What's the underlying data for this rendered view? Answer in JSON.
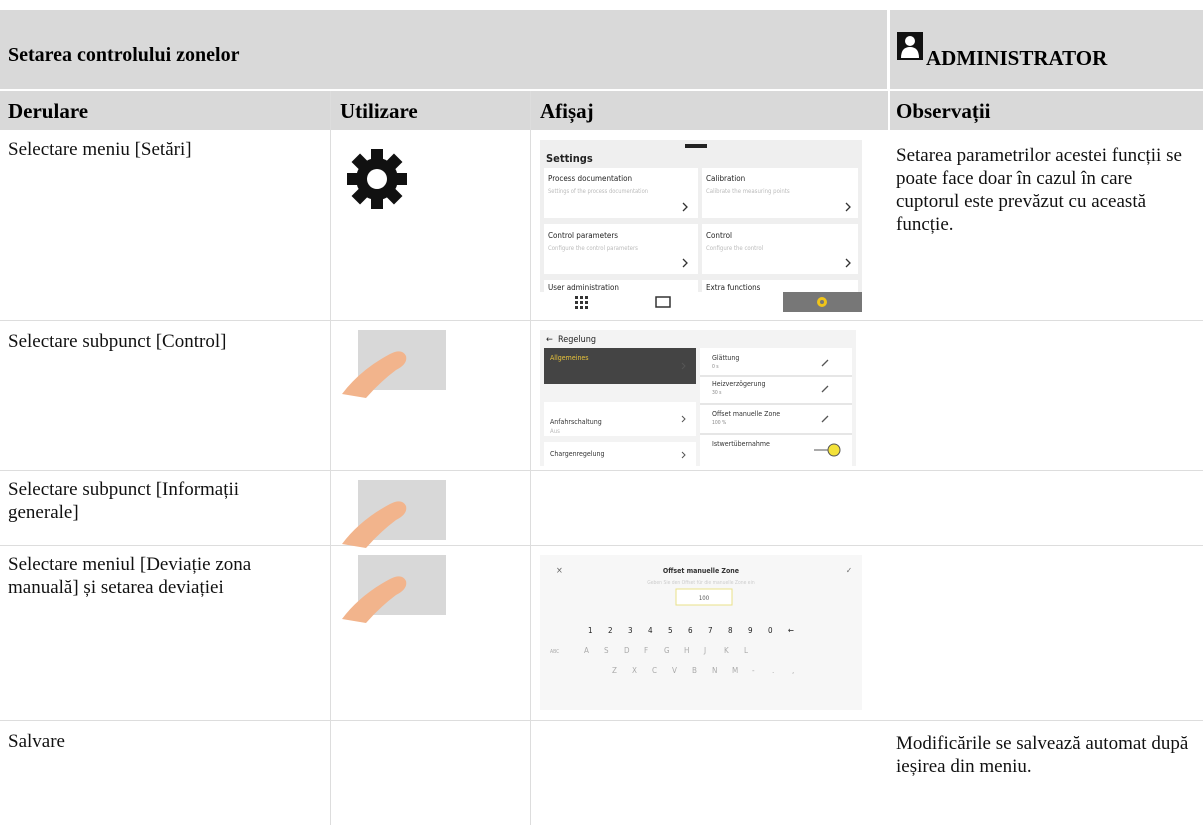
{
  "header": {
    "title": "Setarea controlului zonelor",
    "role": "ADMINISTRATOR"
  },
  "table": {
    "columns": [
      "Derulare",
      "Utilizare",
      "Afișaj",
      "Observații"
    ],
    "rows": [
      {
        "step": "Selectare meniu [Setări]",
        "note": "Setarea parametrilor acestei funcții se poate face doar în cazul în care cuptorul este prevăzut cu această funcție."
      },
      {
        "step": "Selectare subpunct [Control]"
      },
      {
        "step": "Selectare subpunct [Informații generale]"
      },
      {
        "step": "Selectare meniul [Deviație zona manuală] și setarea deviației"
      },
      {
        "step": "Salvare",
        "note": "Modificările se salvează automat după ieșirea din meniu."
      }
    ]
  },
  "screens": {
    "settings": {
      "title": "Settings",
      "cards": [
        {
          "title": "Process documentation",
          "text": "Settings of the process documentation"
        },
        {
          "title": "Calibration",
          "text": "Calibrate the measuring points"
        },
        {
          "title": "Control parameters",
          "text": "Configure the control parameters"
        },
        {
          "title": "Control",
          "text": "Configure the control"
        },
        {
          "title": "User administration"
        },
        {
          "title": "Extra functions"
        }
      ]
    },
    "control": {
      "title": "Regelung",
      "left": [
        {
          "title": "Allgemeines"
        },
        {
          "title": "Anfahrschaltung",
          "text": "Aus"
        },
        {
          "title": "Chargenregelung"
        }
      ],
      "right": [
        {
          "title": "Glättung",
          "text": "0 s"
        },
        {
          "title": "Heizverzögerung",
          "text": "30 s"
        },
        {
          "title": "Offset manuelle Zone",
          "text": "100 %"
        },
        {
          "title": "Istwertübernahme"
        }
      ]
    },
    "keyboard": {
      "close": "×",
      "title": "Offset manuelle Zone",
      "confirm": "✓",
      "hint": "Geben Sie den Offset für die manuelle Zone ein",
      "input": "100",
      "rows": [
        [
          "1",
          "2",
          "3",
          "4",
          "5",
          "6",
          "7",
          "8",
          "9",
          "0",
          "←"
        ],
        [
          "ABC",
          "A",
          "S",
          "D",
          "F",
          "G",
          "H",
          "J",
          "K",
          "L"
        ],
        [
          "Z",
          "X",
          "C",
          "V",
          "B",
          "N",
          "M",
          "-",
          ".",
          ","
        ]
      ]
    }
  }
}
